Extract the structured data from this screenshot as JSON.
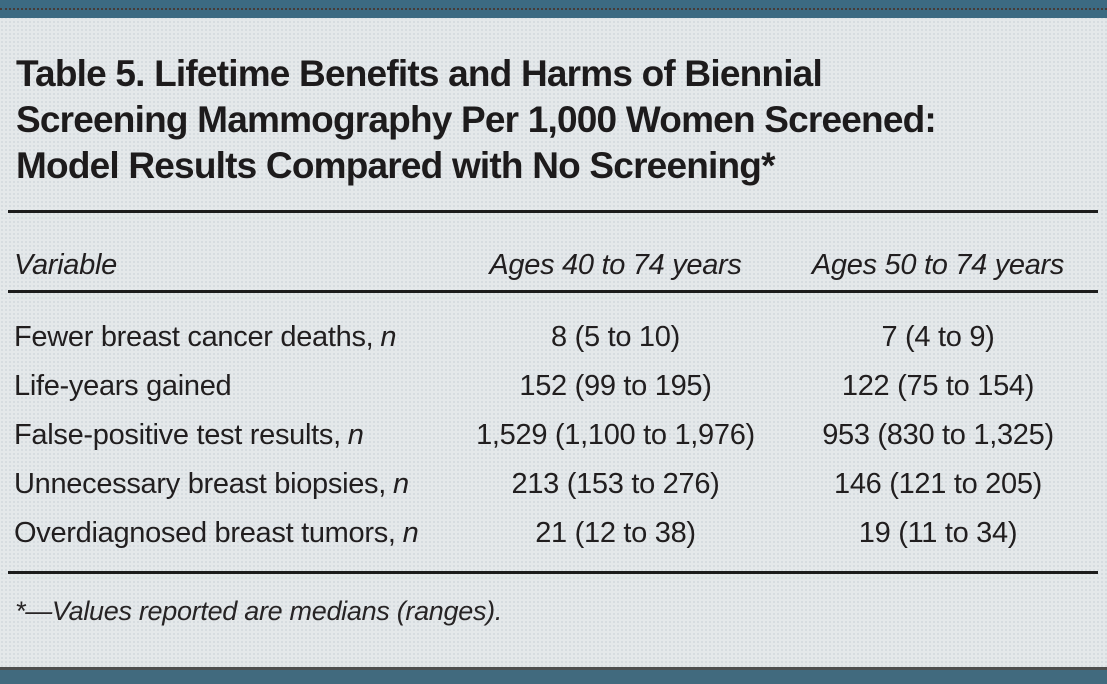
{
  "page": {
    "background_color": "#e4e8ea",
    "accent_bar_color": "#3c6a82",
    "text_color": "#211e1f",
    "rule_color": "#1c1c1c"
  },
  "table": {
    "title_lines": [
      "Table 5. Lifetime Benefits and Harms of Biennial",
      "Screening Mammography Per 1,000 Women Screened:",
      "Model Results Compared with No Screening*"
    ],
    "columns": [
      "Variable",
      "Ages 40 to 74 years",
      "Ages 50 to 74 years"
    ],
    "rows": [
      {
        "label": "Fewer breast cancer deaths,",
        "label_italic": "n",
        "ages_40_74": "8 (5 to 10)",
        "ages_50_74": "7 (4 to 9)"
      },
      {
        "label": "Life-years gained",
        "label_italic": "",
        "ages_40_74": "152 (99 to 195)",
        "ages_50_74": "122 (75 to 154)"
      },
      {
        "label": "False-positive test results,",
        "label_italic": "n",
        "ages_40_74": "1,529 (1,100 to 1,976)",
        "ages_50_74": "953 (830 to 1,325)"
      },
      {
        "label": "Unnecessary breast biopsies,",
        "label_italic": "n",
        "ages_40_74": "213 (153 to 276)",
        "ages_50_74": "146 (121 to 205)"
      },
      {
        "label": "Overdiagnosed breast tumors,",
        "label_italic": "n",
        "ages_40_74": "21 (12 to 38)",
        "ages_50_74": "19 (11 to 34)"
      }
    ],
    "footnote": "*—Values reported are medians (ranges)."
  }
}
